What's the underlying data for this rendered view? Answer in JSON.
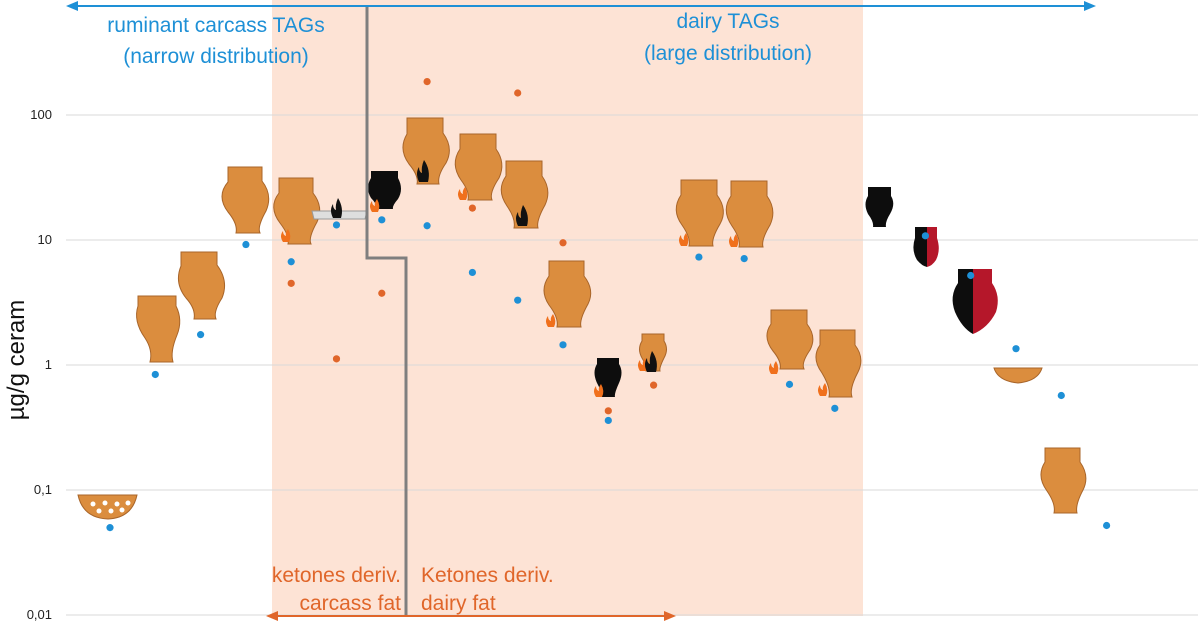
{
  "chart_data": {
    "type": "scatter",
    "ylabel": "µg/g ceram",
    "yscale": "log",
    "ylim": [
      0.01,
      150
    ],
    "yticks": [
      {
        "value": 100,
        "label": "100"
      },
      {
        "value": 10,
        "label": "10"
      },
      {
        "value": 1,
        "label": "1"
      },
      {
        "value": 0.1,
        "label": "0,1"
      },
      {
        "value": 0.01,
        "label": "0,01"
      }
    ],
    "grid": true,
    "n_samples": 24,
    "series": [
      {
        "color": "#1e90d6",
        "values": [
          0.05,
          0.84,
          1.75,
          9.2,
          6.7,
          13.2,
          14.5,
          13.0,
          5.5,
          3.3,
          1.45,
          0.36,
          null,
          7.3,
          7.1,
          0.7,
          0.45,
          null,
          10.8,
          5.2,
          1.35,
          0.57,
          0.052,
          null
        ]
      },
      {
        "color": "#e0662a",
        "values": [
          null,
          null,
          null,
          null,
          4.5,
          1.12,
          3.75,
          185,
          18,
          150,
          9.5,
          0.43,
          0.69,
          null,
          null,
          null,
          null,
          null,
          null,
          null,
          null,
          null,
          null,
          null
        ]
      }
    ],
    "shaded_region": {
      "from_sample": 5,
      "to_sample": 19,
      "color": "#fde3d5"
    },
    "annotations": {
      "blue_left": [
        "ruminant carcass TAGs",
        "(narrow distribution)"
      ],
      "blue_right": [
        "dairy TAGs",
        "(large distribution)"
      ],
      "orange_left": [
        "ketones deriv.",
        "carcass fat"
      ],
      "orange_right": [
        "Ketones deriv.",
        "dairy fat"
      ]
    },
    "colors": {
      "pot_orange": "#db8d3e",
      "pot_black": "#0d0d0d",
      "pot_red": "#b5172a",
      "blue": "#1e90d6",
      "orange": "#e0662a"
    }
  }
}
